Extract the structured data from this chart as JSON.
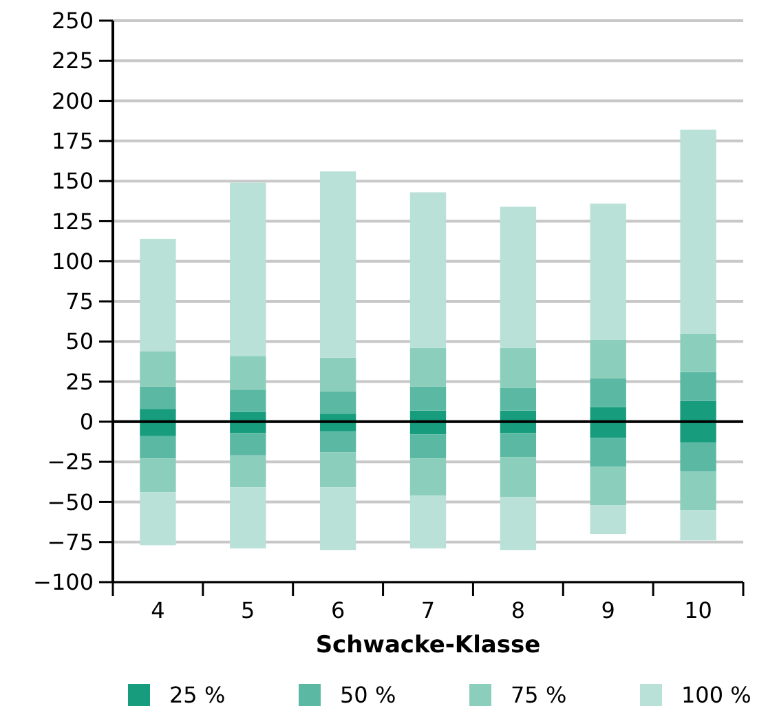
{
  "chart_data": {
    "type": "bar",
    "stacked": true,
    "xlabel": "Schwacke-Klasse",
    "categories": [
      "4",
      "5",
      "6",
      "7",
      "8",
      "9",
      "10"
    ],
    "series": [
      {
        "name": "25 %",
        "color": "#179c7d",
        "values": [
          8,
          6,
          5,
          7,
          7,
          9,
          13
        ]
      },
      {
        "color": "#179c7d",
        "values": [
          -9,
          -7,
          -6,
          -8,
          -7,
          -10,
          -13
        ]
      },
      {
        "name": "50 %",
        "color": "#5bb9a3",
        "values": [
          14,
          14,
          14,
          15,
          14,
          18,
          18
        ]
      },
      {
        "color": "#5bb9a3",
        "values": [
          -14,
          -14,
          -13,
          -15,
          -15,
          -18,
          -18
        ]
      },
      {
        "name": "75 %",
        "color": "#8ccebc",
        "values": [
          22,
          21,
          21,
          24,
          25,
          24,
          24
        ]
      },
      {
        "color": "#8ccebc",
        "values": [
          -21,
          -20,
          -22,
          -23,
          -25,
          -24,
          -24
        ]
      },
      {
        "name": "100 %",
        "color": "#b9e1d7",
        "values": [
          70,
          108,
          116,
          97,
          88,
          85,
          127
        ]
      },
      {
        "color": "#b9e1d7",
        "values": [
          -33,
          -38,
          -39,
          -33,
          -33,
          -18,
          -19
        ]
      }
    ],
    "ylim": [
      -100,
      250
    ],
    "yticks": [
      {
        "value": -100,
        "label": "−100"
      },
      {
        "value": -75,
        "label": "−75"
      },
      {
        "value": -50,
        "label": "−50"
      },
      {
        "value": -25,
        "label": "−25"
      },
      0,
      25,
      50,
      75,
      100,
      125,
      150,
      175,
      200,
      225,
      250
    ],
    "ref_lines": [
      {
        "axis": "y",
        "value": 0,
        "color": "#000000"
      }
    ],
    "grid": "y",
    "legend": "bottom"
  }
}
